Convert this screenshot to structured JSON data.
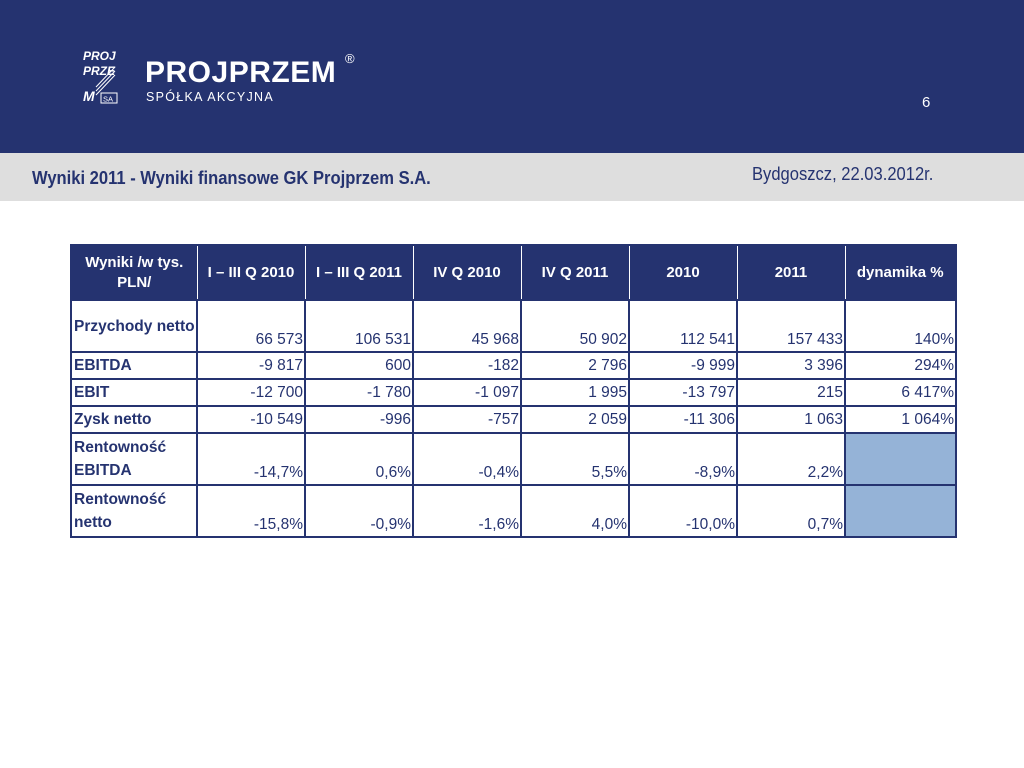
{
  "brand": {
    "name": "PROJPRZEM",
    "registered": "®",
    "subtitle": "SPÓŁKA AKCYJNA",
    "logo_mark_lines": [
      "PROJ",
      "PRZE",
      "M"
    ],
    "logo_mark_badge": "SA",
    "colors": {
      "navy": "#253370",
      "gray_band": "#dedede",
      "highlight": "#95b3d7"
    }
  },
  "page_number": "6",
  "title": "Wyniki 2011 - Wyniki finansowe GK Projprzem S.A.",
  "date": "Bydgoszcz, 22.03.2012r.",
  "table": {
    "headers": [
      "Wyniki /w tys. PLN/",
      "I – III Q 2010",
      "I – III Q 2011",
      "IV Q 2010",
      "IV Q 2011",
      "2010",
      "2011",
      "dynamika %"
    ],
    "rows": [
      {
        "label": "Przychody netto",
        "values": [
          "66 573",
          "106 531",
          "45 968",
          "50 902",
          "112 541",
          "157 433",
          "140%"
        ]
      },
      {
        "label": "EBITDA",
        "values": [
          "-9 817",
          "600",
          "-182",
          "2 796",
          "-9 999",
          "3 396",
          "294%"
        ]
      },
      {
        "label": "EBIT",
        "values": [
          "-12 700",
          "-1 780",
          "-1 097",
          "1 995",
          "-13 797",
          "215",
          "6 417%"
        ]
      },
      {
        "label": "Zysk netto",
        "values": [
          "-10 549",
          "-996",
          "-757",
          "2 059",
          "-11 306",
          "1 063",
          "1 064%"
        ]
      },
      {
        "label": "Rentowność EBITDA",
        "values": [
          "-14,7%",
          "0,6%",
          "-0,4%",
          "5,5%",
          "-8,9%",
          "2,2%",
          ""
        ]
      },
      {
        "label": "Rentowność netto",
        "values": [
          "-15,8%",
          "-0,9%",
          "-1,6%",
          "4,0%",
          "-10,0%",
          "0,7%",
          ""
        ]
      }
    ]
  }
}
